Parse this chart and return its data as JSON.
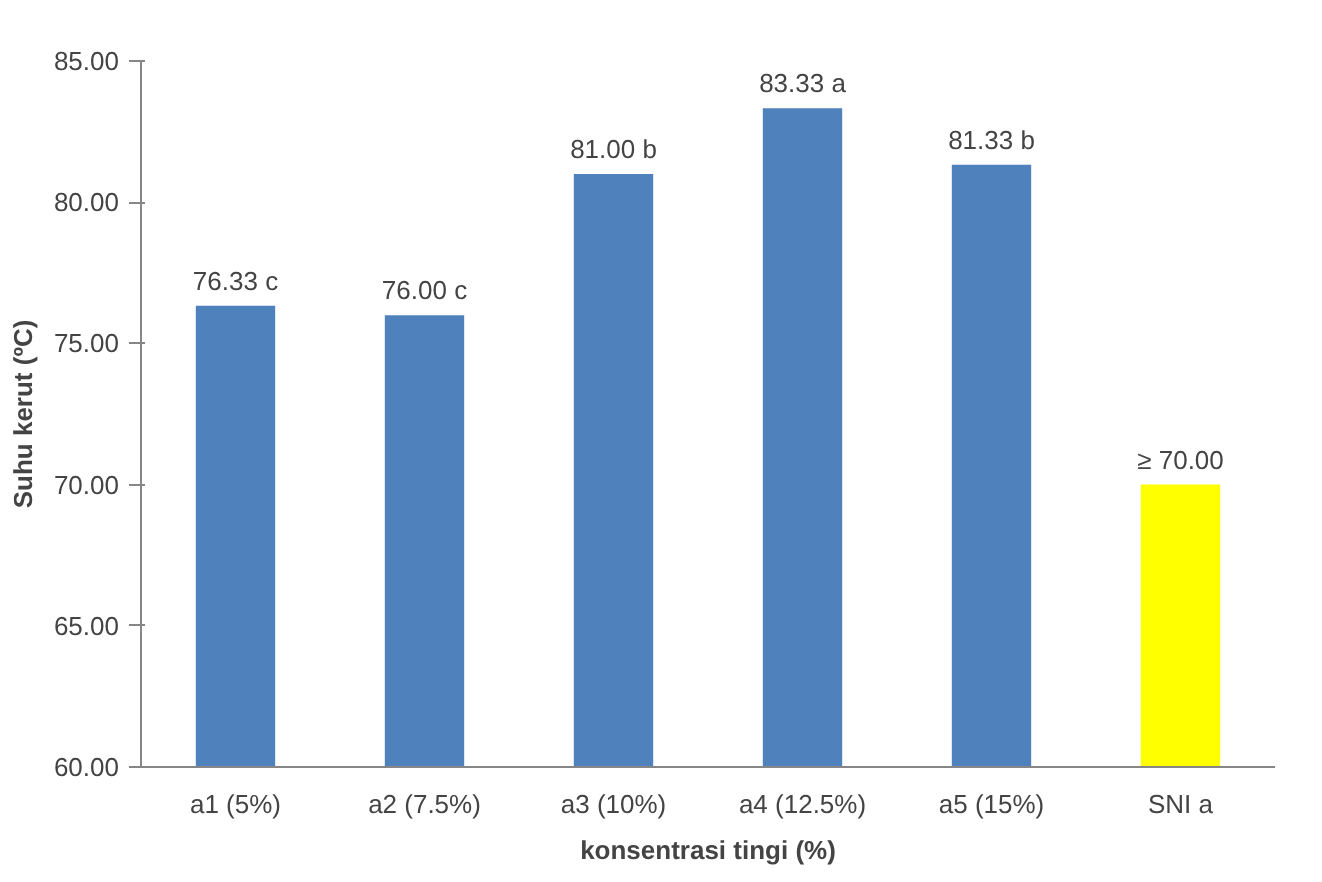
{
  "chart_data": {
    "type": "bar",
    "xlabel": "konsentrasi tingi (%)",
    "ylabel": "Suhu kerut (ºC)",
    "categories": [
      "a1 (5%)",
      "a2 (7.5%)",
      "a3 (10%)",
      "a4 (12.5%)",
      "a5 (15%)",
      "SNI a"
    ],
    "values": [
      76.33,
      76.0,
      81.0,
      83.33,
      81.33,
      70.0
    ],
    "colors": [
      "#4f81bd",
      "#4f81bd",
      "#4f81bd",
      "#4f81bd",
      "#4f81bd",
      "#ffff00"
    ],
    "value_labels": [
      "76.33 c",
      "76.00 c",
      "81.00 b",
      "83.33 a",
      "81.33 b",
      "≥ 70.00"
    ],
    "ylim": [
      60,
      85
    ],
    "yticks": [
      {
        "value": 60,
        "label": "60.00"
      },
      {
        "value": 65,
        "label": "65.00"
      },
      {
        "value": 70,
        "label": "70.00"
      },
      {
        "value": 75,
        "label": "75.00"
      },
      {
        "value": 80,
        "label": "80.00"
      },
      {
        "value": 85,
        "label": "85.00"
      }
    ],
    "grid": false
  }
}
